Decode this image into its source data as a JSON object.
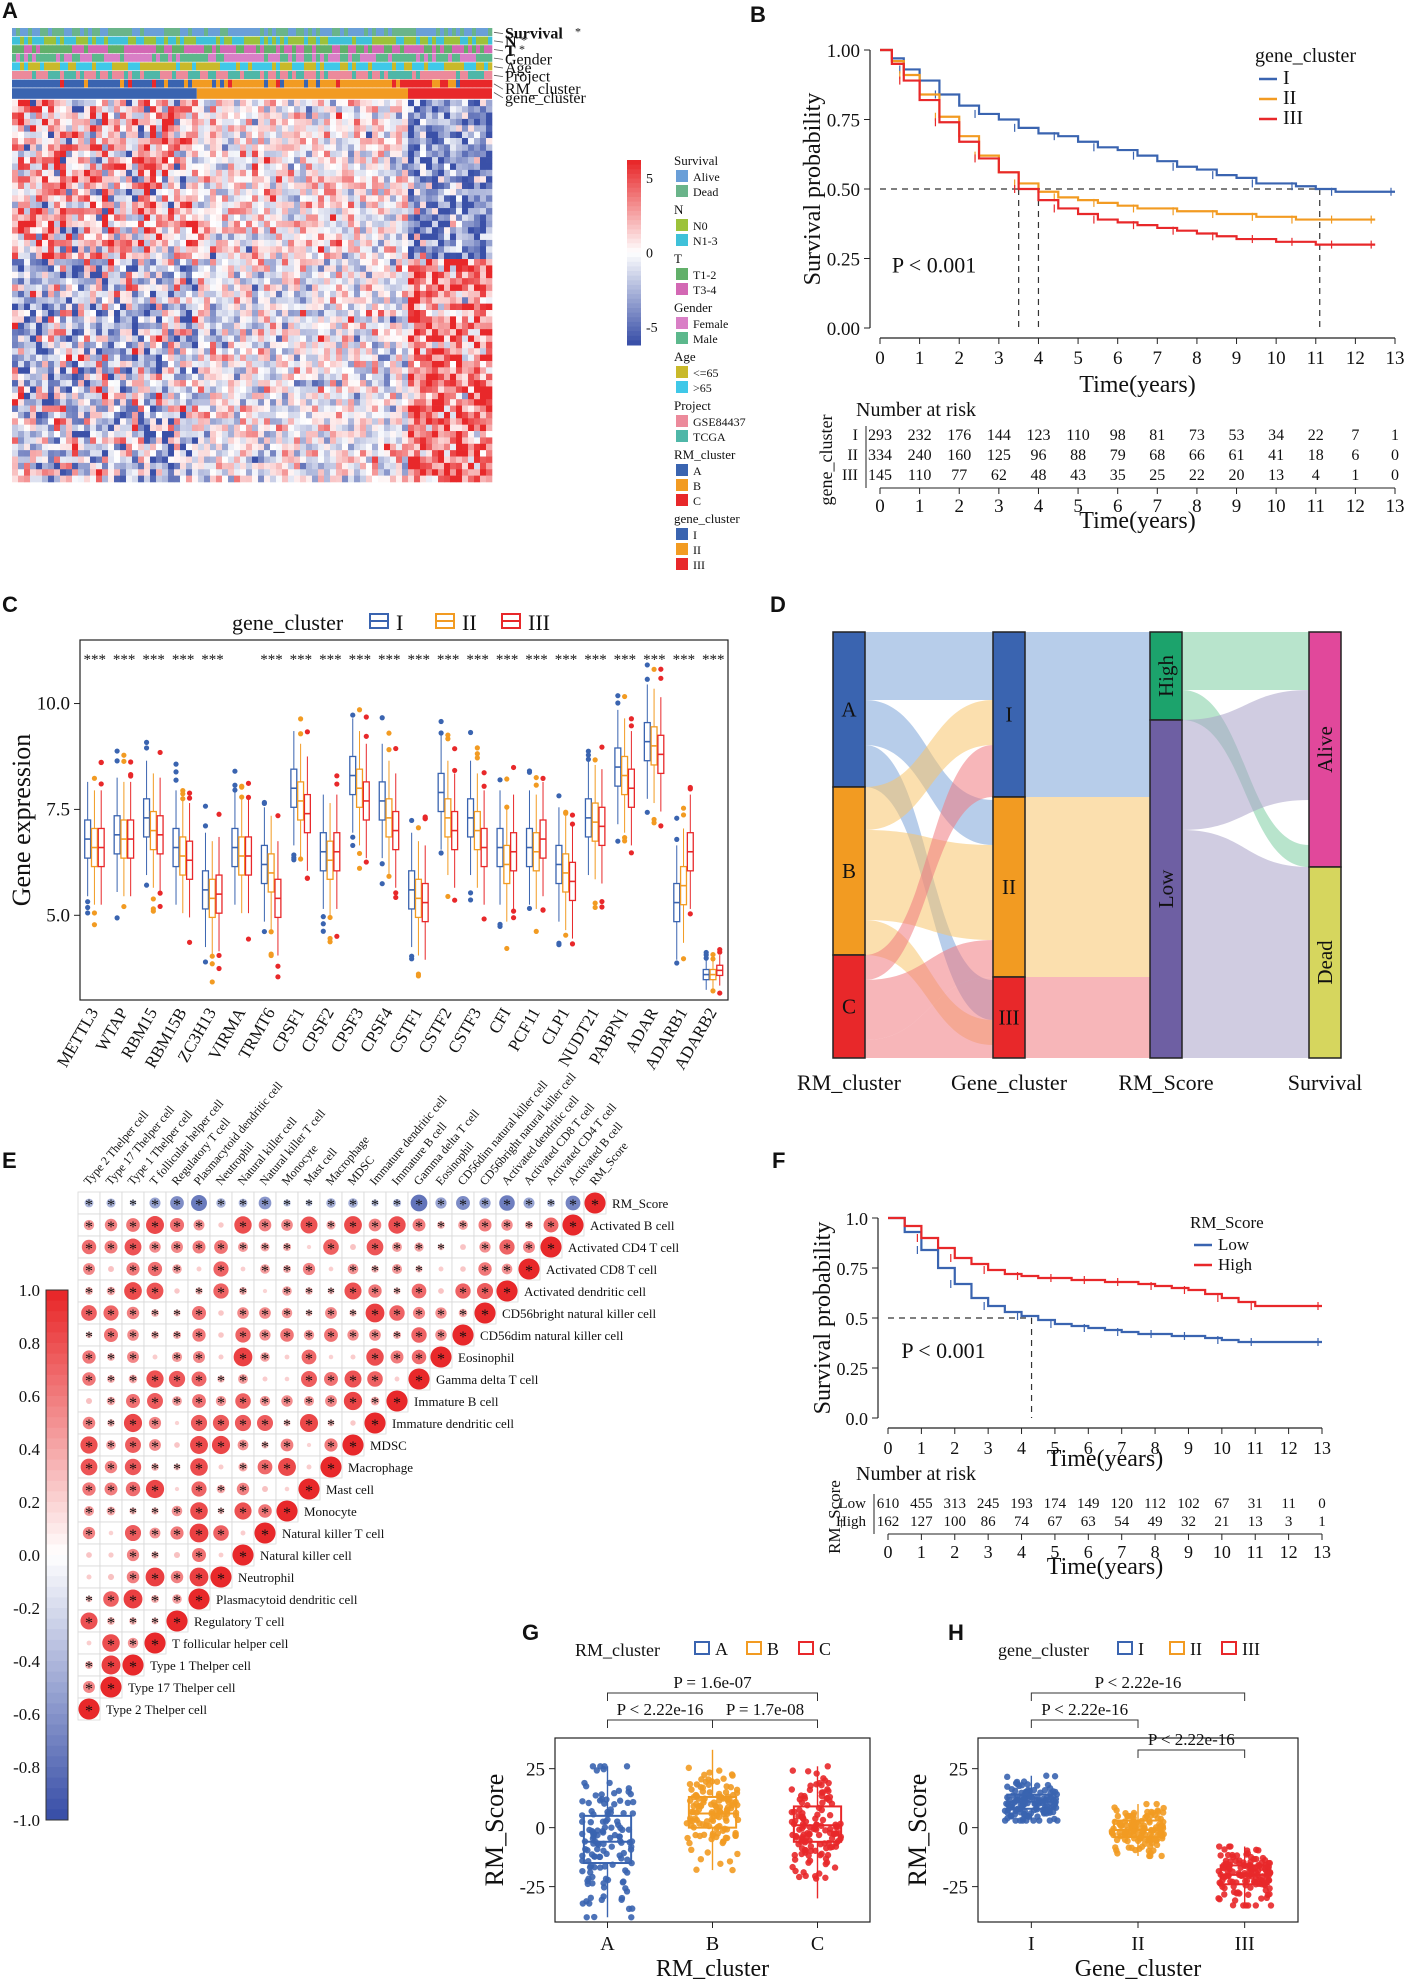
{
  "panel_labels": [
    "A",
    "B",
    "C",
    "D",
    "E",
    "F",
    "G",
    "H"
  ],
  "panelA": {
    "track_labels": [
      "Survival",
      "N",
      "T",
      "Gender",
      "Age",
      "Project",
      "RM_cluster",
      "gene_cluster"
    ],
    "star": "*",
    "colorbar_ticks": [
      "5",
      "0",
      "-5"
    ],
    "legends": [
      {
        "title": "Survival",
        "items": [
          {
            "label": "Alive",
            "color": "#6a9fd8"
          },
          {
            "label": "Dead",
            "color": "#6ab48a"
          }
        ]
      },
      {
        "title": "N",
        "items": [
          {
            "label": "N0",
            "color": "#9cc23a"
          },
          {
            "label": "N1-3",
            "color": "#3fc1d9"
          }
        ]
      },
      {
        "title": "T",
        "items": [
          {
            "label": "T1-2",
            "color": "#62b06a"
          },
          {
            "label": "T3-4",
            "color": "#d368b4"
          }
        ]
      },
      {
        "title": "Gender",
        "items": [
          {
            "label": "Female",
            "color": "#d97fc6"
          },
          {
            "label": "Male",
            "color": "#5cb88c"
          }
        ]
      },
      {
        "title": "Age",
        "items": [
          {
            "label": "<=65",
            "color": "#c9b92a"
          },
          {
            "label": ">65",
            "color": "#3fc8e8"
          }
        ]
      },
      {
        "title": "Project",
        "items": [
          {
            "label": "GSE84437",
            "color": "#ec8a9b"
          },
          {
            "label": "TCGA",
            "color": "#4fb7a8"
          }
        ]
      },
      {
        "title": "RM_cluster",
        "items": [
          {
            "label": "A",
            "color": "#3a64b0"
          },
          {
            "label": "B",
            "color": "#f29b22"
          },
          {
            "label": "C",
            "color": "#e8282a"
          }
        ]
      },
      {
        "title": "gene_cluster",
        "items": [
          {
            "label": "I",
            "color": "#3a64b0"
          },
          {
            "label": "II",
            "color": "#f29b22"
          },
          {
            "label": "III",
            "color": "#e8282a"
          }
        ]
      }
    ]
  },
  "chart_data": [
    {
      "id": "B",
      "type": "line",
      "title": "",
      "xlabel": "Time(years)",
      "ylabel": "Survival probability",
      "xlim": [
        0,
        13
      ],
      "ylim": [
        0,
        1
      ],
      "xticks": [
        "0",
        "1",
        "2",
        "3",
        "4",
        "5",
        "6",
        "7",
        "8",
        "9",
        "10",
        "11",
        "12",
        "13"
      ],
      "yticks": [
        "0.00",
        "0.25",
        "0.50",
        "0.75",
        "1.00"
      ],
      "legend_title": "gene_cluster",
      "pvalue": "P < 0.001",
      "medians": [
        3.5,
        4.0,
        11.1
      ],
      "series": [
        {
          "name": "I",
          "color": "#3a64b0",
          "x": [
            0,
            0.3,
            0.6,
            1,
            1.5,
            2,
            2.5,
            3,
            3.5,
            4,
            4.5,
            5,
            5.5,
            6,
            6.5,
            7,
            7.5,
            8,
            8.5,
            9,
            9.5,
            10,
            10.5,
            11,
            11.5,
            12,
            13
          ],
          "y": [
            1,
            0.97,
            0.93,
            0.89,
            0.84,
            0.8,
            0.77,
            0.75,
            0.72,
            0.7,
            0.69,
            0.67,
            0.65,
            0.64,
            0.62,
            0.6,
            0.58,
            0.57,
            0.55,
            0.54,
            0.52,
            0.52,
            0.51,
            0.5,
            0.49,
            0.49,
            0.49
          ]
        },
        {
          "name": "II",
          "color": "#f29b22",
          "x": [
            0,
            0.3,
            0.6,
            1,
            1.5,
            2,
            2.5,
            3,
            3.5,
            4,
            4.5,
            5,
            5.5,
            6,
            6.5,
            7,
            7.5,
            8,
            8.5,
            9,
            9.5,
            10,
            10.5,
            11,
            11.5,
            12,
            12.5
          ],
          "y": [
            1,
            0.96,
            0.91,
            0.84,
            0.76,
            0.69,
            0.62,
            0.56,
            0.52,
            0.49,
            0.47,
            0.46,
            0.45,
            0.44,
            0.43,
            0.43,
            0.42,
            0.42,
            0.41,
            0.41,
            0.4,
            0.4,
            0.39,
            0.39,
            0.39,
            0.39,
            0.39
          ]
        },
        {
          "name": "III",
          "color": "#e8282a",
          "x": [
            0,
            0.3,
            0.6,
            1,
            1.5,
            2,
            2.5,
            3,
            3.5,
            4,
            4.5,
            5,
            5.5,
            6,
            6.5,
            7,
            7.5,
            8,
            8.5,
            9,
            9.5,
            10,
            10.5,
            11,
            11.5,
            12,
            12.5
          ],
          "y": [
            1,
            0.95,
            0.89,
            0.82,
            0.74,
            0.67,
            0.61,
            0.56,
            0.5,
            0.46,
            0.43,
            0.41,
            0.39,
            0.38,
            0.37,
            0.36,
            0.35,
            0.34,
            0.33,
            0.32,
            0.32,
            0.31,
            0.31,
            0.3,
            0.3,
            0.3,
            0.3
          ]
        }
      ],
      "risk_table": {
        "title": "Number at risk",
        "ylabel": "gene_cluster",
        "xlabel": "Time(years)",
        "rows": [
          {
            "name": "I",
            "color": "#3a64b0",
            "values": [
              "293",
              "232",
              "176",
              "144",
              "123",
              "110",
              "98",
              "81",
              "73",
              "53",
              "34",
              "22",
              "7",
              "1"
            ]
          },
          {
            "name": "II",
            "color": "#f29b22",
            "values": [
              "334",
              "240",
              "160",
              "125",
              "96",
              "88",
              "79",
              "68",
              "66",
              "61",
              "41",
              "18",
              "6",
              "0"
            ]
          },
          {
            "name": "III",
            "color": "#e8282a",
            "values": [
              "145",
              "110",
              "77",
              "62",
              "48",
              "43",
              "35",
              "25",
              "22",
              "20",
              "13",
              "4",
              "1",
              "0"
            ]
          }
        ]
      }
    },
    {
      "id": "C",
      "type": "box",
      "ylabel": "Gene expression",
      "legend_title": "gene_cluster",
      "ylim": [
        3,
        11.5
      ],
      "yticks": [
        "5.0",
        "7.5",
        "10.0"
      ],
      "series_names": [
        "I",
        "II",
        "III"
      ],
      "series_colors": [
        "#3a64b0",
        "#f29b22",
        "#e8282a"
      ],
      "categories": [
        "METTL3",
        "WTAP",
        "RBM15",
        "RBM15B",
        "ZC3H13",
        "VIRMA",
        "TRMT6",
        "CPSF1",
        "CPSF2",
        "CPSF3",
        "CPSF4",
        "CSTF1",
        "CSTF2",
        "CSTF3",
        "CFI",
        "PCF11",
        "CLP1",
        "NUDT21",
        "PABPN1",
        "ADAR",
        "ADARB1",
        "ADARB2"
      ],
      "significance": [
        "***",
        "***",
        "***",
        "***",
        "***",
        "",
        "***",
        "***",
        "***",
        "***",
        "***",
        "***",
        "***",
        "***",
        "***",
        "***",
        "***",
        "***",
        "***",
        "***",
        "***",
        "***"
      ],
      "medians": [
        [
          6.8,
          6.6,
          6.6
        ],
        [
          6.9,
          6.8,
          6.8
        ],
        [
          7.3,
          7.0,
          6.9
        ],
        [
          6.6,
          6.4,
          6.3
        ],
        [
          5.6,
          5.4,
          5.5
        ],
        [
          6.6,
          6.4,
          6.4
        ],
        [
          6.2,
          6.0,
          5.4
        ],
        [
          8.0,
          7.7,
          7.4
        ],
        [
          6.5,
          6.3,
          6.5
        ],
        [
          8.3,
          8.0,
          7.7
        ],
        [
          7.7,
          7.3,
          7.0
        ],
        [
          5.6,
          5.4,
          5.3
        ],
        [
          7.9,
          7.3,
          7.0
        ],
        [
          7.3,
          7.0,
          6.6
        ],
        [
          6.6,
          6.2,
          6.5
        ],
        [
          6.6,
          6.5,
          6.8
        ],
        [
          6.2,
          6.0,
          5.8
        ],
        [
          7.3,
          7.2,
          7.1
        ],
        [
          8.5,
          8.3,
          8.0
        ],
        [
          9.1,
          9.0,
          8.8
        ],
        [
          5.3,
          5.7,
          6.5
        ],
        [
          3.6,
          3.6,
          3.7
        ]
      ]
    },
    {
      "id": "D",
      "type": "sankey",
      "axes": [
        "RM_cluster",
        "Gene_cluster",
        "RM_Score",
        "Survival"
      ],
      "nodes": [
        [
          "A",
          "B",
          "C"
        ],
        [
          "I",
          "II",
          "III"
        ],
        [
          "High",
          "Low"
        ],
        [
          "Alive",
          "Dead"
        ]
      ],
      "node_colors": [
        [
          "#3a64b0",
          "#f29b22",
          "#e8282a"
        ],
        [
          "#3a64b0",
          "#f29b22",
          "#e8282a"
        ],
        [
          "#1ca36c",
          "#6e5fa3"
        ],
        [
          "#e1489b",
          "#d6d65e"
        ]
      ]
    },
    {
      "id": "E",
      "type": "heatmap",
      "subtype": "correlation",
      "colorbar_ticks": [
        "1.0",
        "0.8",
        "0.6",
        "0.4",
        "0.2",
        "0.0",
        "-0.2",
        "-0.4",
        "-0.6",
        "-0.8",
        "-1.0"
      ],
      "labels": [
        "Type 2 Thelper cell",
        "Type 17 Thelper cell",
        "Type 1 Thelper cell",
        "T follicular helper cell",
        "Regulatory T cell",
        "Plasmacytoid dendritic cell",
        "Neutrophil",
        "Natural killer cell",
        "Natural killer T cell",
        "Monocyte",
        "Mast cell",
        "Macrophage",
        "MDSC",
        "Immature dendritic cell",
        "Immature B cell",
        "Gamma delta T cell",
        "Eosinophil",
        "CD56dim natural killer cell",
        "CD56bright natural killer cell",
        "Activated dendritic cell",
        "Activated CD8 T cell",
        "Activated CD4 T cell",
        "Activated B cell",
        "RM_Score"
      ],
      "star": "*"
    },
    {
      "id": "F",
      "type": "line",
      "xlabel": "Time(years)",
      "ylabel": "Survival probability",
      "xlim": [
        0,
        13
      ],
      "ylim": [
        0,
        1
      ],
      "xticks": [
        "0",
        "1",
        "2",
        "3",
        "4",
        "5",
        "6",
        "7",
        "8",
        "9",
        "10",
        "11",
        "12",
        "13"
      ],
      "yticks": [
        "0.0",
        "0.25",
        "0.5",
        "0.75",
        "1.0"
      ],
      "legend_title": "RM_Score",
      "pvalue": "P < 0.001",
      "median": 4.3,
      "series": [
        {
          "name": "Low",
          "color": "#3a64b0",
          "x": [
            0,
            0.5,
            1,
            1.5,
            2,
            2.5,
            3,
            3.5,
            4,
            4.5,
            5,
            5.5,
            6,
            6.5,
            7,
            7.5,
            8,
            8.5,
            9,
            9.5,
            10,
            10.5,
            11,
            12,
            13
          ],
          "y": [
            1,
            0.93,
            0.84,
            0.75,
            0.67,
            0.6,
            0.56,
            0.53,
            0.51,
            0.49,
            0.47,
            0.46,
            0.45,
            0.44,
            0.43,
            0.42,
            0.42,
            0.41,
            0.41,
            0.4,
            0.39,
            0.38,
            0.38,
            0.38,
            0.38
          ]
        },
        {
          "name": "High",
          "color": "#e8282a",
          "x": [
            0,
            0.5,
            1,
            1.5,
            2,
            2.5,
            3,
            3.5,
            4,
            4.5,
            5,
            5.5,
            6,
            6.5,
            7,
            7.5,
            8,
            8.5,
            9,
            9.5,
            10,
            10.5,
            11,
            12,
            13
          ],
          "y": [
            1,
            0.96,
            0.9,
            0.85,
            0.8,
            0.77,
            0.74,
            0.72,
            0.71,
            0.7,
            0.7,
            0.69,
            0.69,
            0.68,
            0.68,
            0.67,
            0.66,
            0.65,
            0.64,
            0.62,
            0.6,
            0.58,
            0.56,
            0.56,
            0.56
          ]
        }
      ],
      "risk_table": {
        "title": "Number at risk",
        "ylabel": "RM_Score",
        "xlabel": "Time(years)",
        "rows": [
          {
            "name": "Low",
            "color": "#3a64b0",
            "values": [
              "610",
              "455",
              "313",
              "245",
              "193",
              "174",
              "149",
              "120",
              "112",
              "102",
              "67",
              "31",
              "11",
              "0"
            ]
          },
          {
            "name": "High",
            "color": "#e8282a",
            "values": [
              "162",
              "127",
              "100",
              "86",
              "74",
              "67",
              "63",
              "54",
              "49",
              "32",
              "21",
              "13",
              "3",
              "1"
            ]
          }
        ]
      }
    },
    {
      "id": "G",
      "type": "box",
      "xlabel": "RM_cluster",
      "ylabel": "RM_Score",
      "legend_title": "RM_cluster",
      "categories": [
        "A",
        "B",
        "C"
      ],
      "colors": [
        "#3a64b0",
        "#f29b22",
        "#e8282a"
      ],
      "ylim": [
        -40,
        38
      ],
      "yticks": [
        "-25",
        "0",
        "25"
      ],
      "box": [
        {
          "q1": -15,
          "med": -6,
          "q3": 5,
          "lo": -38,
          "hi": 26
        },
        {
          "q1": 0,
          "med": 6,
          "q3": 13,
          "lo": -18,
          "hi": 33
        },
        {
          "q1": -6,
          "med": 1,
          "q3": 9,
          "lo": -30,
          "hi": 26
        }
      ],
      "pvalues": [
        "P = 1.6e-07",
        "P < 2.22e-16",
        "P = 1.7e-08"
      ]
    },
    {
      "id": "H",
      "type": "box",
      "xlabel": "Gene_cluster",
      "ylabel": "RM_Score",
      "legend_title": "gene_cluster",
      "categories": [
        "I",
        "II",
        "III"
      ],
      "colors": [
        "#3a64b0",
        "#f29b22",
        "#e8282a"
      ],
      "ylim": [
        -40,
        38
      ],
      "yticks": [
        "-25",
        "0",
        "25"
      ],
      "box": [
        {
          "q1": 8,
          "med": 11,
          "q3": 14,
          "lo": 3,
          "hi": 22
        },
        {
          "q1": -4,
          "med": -1,
          "q3": 3,
          "lo": -12,
          "hi": 10
        },
        {
          "q1": -24,
          "med": -20,
          "q3": -16,
          "lo": -33,
          "hi": -8
        }
      ],
      "pvalues": [
        "P < 2.22e-16",
        "P < 2.22e-16",
        "P < 2.22e-16"
      ]
    }
  ]
}
